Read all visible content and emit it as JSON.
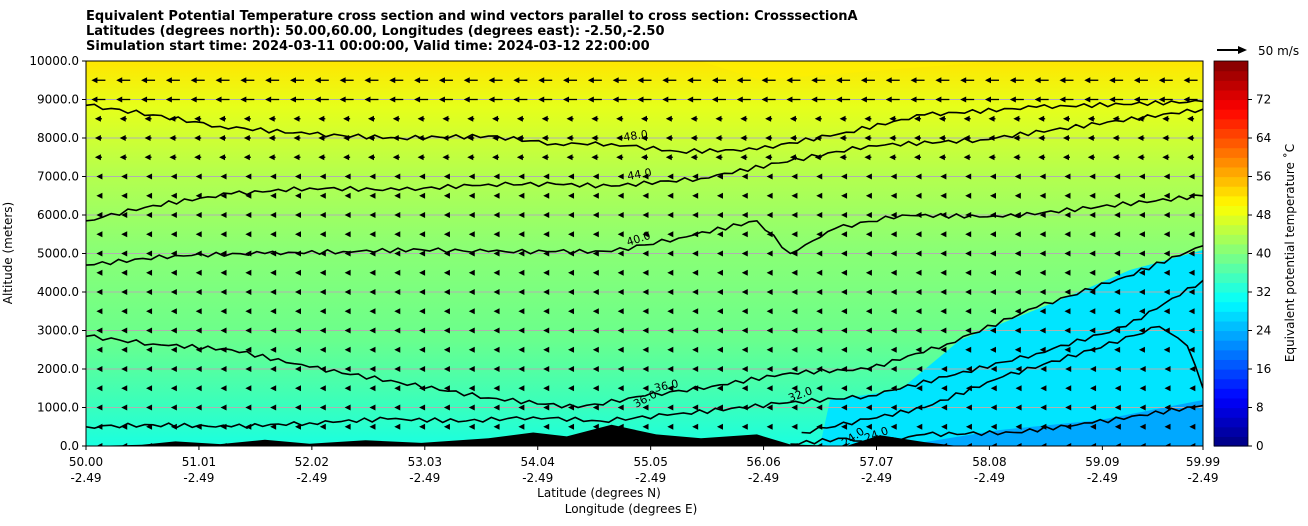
{
  "chart_data": {
    "type": "contourf",
    "title_lines": [
      "Equivalent Potential Temperature cross section and wind vectors parallel to cross section: CrosssectionA",
      "Latitudes (degrees north): 50.00,60.00, Longitudes (degrees east): -2.50,-2.50",
      "Simulation start time: 2024-03-11 00:00:00, Valid time: 2024-03-12 22:00:00"
    ],
    "xlabel_lines": [
      "Latitude (degrees N)",
      "Longitude (degrees E)"
    ],
    "ylabel": "Altitude (meters)",
    "x_range": [
      50.0,
      59.99
    ],
    "ylim": [
      0,
      10000
    ],
    "x_ticks": [
      {
        "lat": "50.00",
        "lon": "-2.49"
      },
      {
        "lat": "51.01",
        "lon": "-2.49"
      },
      {
        "lat": "52.02",
        "lon": "-2.49"
      },
      {
        "lat": "53.03",
        "lon": "-2.49"
      },
      {
        "lat": "54.04",
        "lon": "-2.49"
      },
      {
        "lat": "55.05",
        "lon": "-2.49"
      },
      {
        "lat": "56.06",
        "lon": "-2.49"
      },
      {
        "lat": "57.07",
        "lon": "-2.49"
      },
      {
        "lat": "58.08",
        "lon": "-2.49"
      },
      {
        "lat": "59.09",
        "lon": "-2.49"
      },
      {
        "lat": "59.99",
        "lon": "-2.49"
      }
    ],
    "y_ticks": [
      "0.0",
      "1000.0",
      "2000.0",
      "3000.0",
      "4000.0",
      "5000.0",
      "6000.0",
      "7000.0",
      "8000.0",
      "9000.0",
      "10000.0"
    ],
    "grid": "horizontal",
    "colorbar": {
      "label": "Equivalent potential temperature ˚C",
      "range": [
        0,
        80
      ],
      "ticks": [
        "0",
        "8",
        "16",
        "24",
        "32",
        "40",
        "48",
        "56",
        "64",
        "72"
      ]
    },
    "quiver_key": "50 m/s",
    "contour_labels": [
      "48.0",
      "44.0",
      "40.0",
      "36.0",
      "36.0",
      "32.0",
      "24.0",
      "24.0"
    ],
    "contours": [
      {
        "level": 48,
        "points": [
          [
            50.0,
            8850
          ],
          [
            50.6,
            8600
          ],
          [
            51.2,
            8300
          ],
          [
            52.0,
            8100
          ],
          [
            52.8,
            8000
          ],
          [
            53.6,
            8050
          ],
          [
            54.2,
            7850
          ],
          [
            54.7,
            7850
          ],
          [
            55.3,
            7650
          ],
          [
            56.0,
            7700
          ],
          [
            56.8,
            8150
          ],
          [
            57.5,
            8600
          ],
          [
            58.5,
            8800
          ],
          [
            59.99,
            8950
          ]
        ]
      },
      {
        "level": 44,
        "points": [
          [
            50.0,
            5850
          ],
          [
            50.6,
            6250
          ],
          [
            51.3,
            6550
          ],
          [
            52.0,
            6700
          ],
          [
            52.8,
            6650
          ],
          [
            53.6,
            6800
          ],
          [
            54.2,
            6800
          ],
          [
            54.7,
            6750
          ],
          [
            55.5,
            6950
          ],
          [
            56.2,
            7350
          ],
          [
            57.0,
            7800
          ],
          [
            58.0,
            7950
          ],
          [
            59.99,
            8750
          ]
        ]
      },
      {
        "level": 40,
        "points": [
          [
            50.0,
            4700
          ],
          [
            50.8,
            4950
          ],
          [
            51.6,
            5000
          ],
          [
            52.3,
            5050
          ],
          [
            53.0,
            5100
          ],
          [
            53.6,
            5050
          ],
          [
            54.2,
            5050
          ],
          [
            54.7,
            5050
          ],
          [
            55.3,
            5400
          ],
          [
            56.0,
            5850
          ],
          [
            56.3,
            5000
          ],
          [
            56.7,
            5650
          ],
          [
            57.3,
            6000
          ],
          [
            58.2,
            5950
          ],
          [
            59.99,
            6500
          ]
        ]
      },
      {
        "level": 36,
        "points": [
          [
            50.0,
            2850
          ],
          [
            50.6,
            2650
          ],
          [
            51.3,
            2500
          ],
          [
            52.0,
            2050
          ],
          [
            52.8,
            1650
          ],
          [
            53.6,
            1250
          ],
          [
            54.4,
            1000
          ],
          [
            55.0,
            1300
          ],
          [
            55.6,
            1550
          ],
          [
            56.3,
            1900
          ],
          [
            57.0,
            2000
          ],
          [
            57.7,
            2650
          ],
          [
            58.5,
            3600
          ],
          [
            59.3,
            4400
          ],
          [
            59.99,
            5200
          ]
        ]
      },
      {
        "level": 32,
        "points": [
          [
            50.0,
            500
          ],
          [
            50.6,
            550
          ],
          [
            51.3,
            500
          ],
          [
            52.0,
            600
          ],
          [
            52.7,
            700
          ],
          [
            53.4,
            650
          ],
          [
            54.0,
            750
          ],
          [
            54.6,
            650
          ],
          [
            55.2,
            800
          ],
          [
            56.2,
            1100
          ],
          [
            57.0,
            1300
          ],
          [
            57.7,
            1800
          ],
          [
            58.5,
            2400
          ],
          [
            59.3,
            3100
          ],
          [
            59.99,
            4300
          ]
        ]
      },
      {
        "level": 28,
        "points": [
          [
            56.4,
            350
          ],
          [
            57.0,
            700
          ],
          [
            57.5,
            1000
          ],
          [
            58.2,
            1800
          ],
          [
            59.0,
            2500
          ],
          [
            59.6,
            3100
          ],
          [
            59.85,
            2600
          ],
          [
            59.99,
            1500
          ]
        ]
      },
      {
        "level": 24,
        "points": [
          [
            56.3,
            50
          ],
          [
            56.8,
            200
          ],
          [
            57.0,
            50
          ],
          [
            57.5,
            300
          ],
          [
            58.3,
            350
          ],
          [
            59.0,
            600
          ],
          [
            59.99,
            1050
          ]
        ]
      }
    ],
    "terrain": [
      [
        50.0,
        0
      ],
      [
        50.5,
        30
      ],
      [
        50.8,
        120
      ],
      [
        51.2,
        50
      ],
      [
        51.6,
        160
      ],
      [
        52.0,
        60
      ],
      [
        52.5,
        150
      ],
      [
        53.0,
        80
      ],
      [
        53.6,
        200
      ],
      [
        54.0,
        350
      ],
      [
        54.3,
        250
      ],
      [
        54.7,
        550
      ],
      [
        55.1,
        300
      ],
      [
        55.5,
        200
      ],
      [
        56.0,
        300
      ],
      [
        56.3,
        40
      ],
      [
        56.8,
        0
      ],
      [
        57.1,
        280
      ],
      [
        57.5,
        100
      ],
      [
        57.8,
        0
      ],
      [
        59.99,
        0
      ]
    ]
  }
}
